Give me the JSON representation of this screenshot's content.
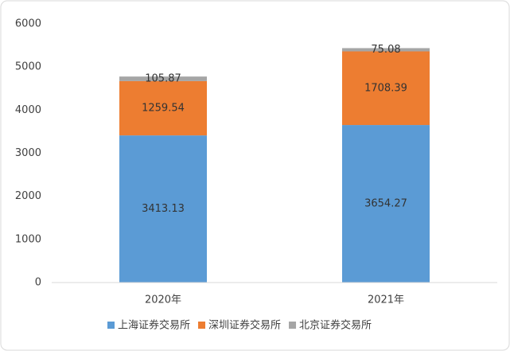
{
  "chart_data": {
    "type": "bar",
    "stacked": true,
    "categories": [
      "2020年",
      "2021年"
    ],
    "series": [
      {
        "name": "上海证券交易所",
        "color": "#5b9bd5",
        "values": [
          3413.13,
          3654.27
        ]
      },
      {
        "name": "深圳证券交易所",
        "color": "#ed7d31",
        "values": [
          1259.54,
          1708.39
        ]
      },
      {
        "name": "北京证券交易所",
        "color": "#a5a5a5",
        "values": [
          105.87,
          75.08
        ]
      }
    ],
    "ylim": [
      0,
      6000
    ],
    "yticks": [
      0,
      1000,
      2000,
      3000,
      4000,
      5000,
      6000
    ],
    "grid": false,
    "data_labels": true,
    "legend": "bottom"
  }
}
